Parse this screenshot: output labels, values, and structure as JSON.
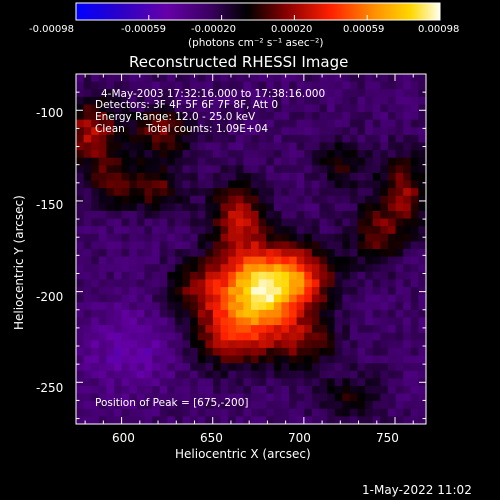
{
  "chart_data": {
    "type": "heatmap",
    "title": "Reconstructed RHESSI Image",
    "xlabel": "Heliocentric X (arcsec)",
    "ylabel": "Heliocentric Y (arcsec)",
    "xlim": [
      575,
      767
    ],
    "ylim": [
      -273,
      -80
    ],
    "xticks": [
      600,
      650,
      700,
      750
    ],
    "yticks": [
      -100,
      -150,
      -200,
      -250
    ],
    "colorbar": {
      "colormap": "RHESSI blue-purple-red-orange-yellow-white",
      "range": [
        -0.00098,
        0.00098
      ],
      "tick_labels": [
        "-0.00098",
        "-0.00059",
        "-0.00020",
        "0.00020",
        "0.00059",
        "0.00098"
      ],
      "units": "(photons cm⁻² s⁻¹ asec⁻²)"
    },
    "annotations": {
      "time_range": "4-May-2003 17:32:16.000 to 17:38:16.000",
      "detectors": "Detectors: 3F 4F 5F 6F 7F 8F, Att 0",
      "energy_range": "Energy Range: 12.0 - 25.0 keV",
      "algorithm": "Clean",
      "total_counts": "Total counts: 1.09E+04",
      "peak_position": "Position of Peak = [675,-200]"
    },
    "peak": [
      675,
      -200
    ],
    "sources": [
      {
        "x": 675,
        "y": -200,
        "amp": 0.00108,
        "sx": 17,
        "sy": 15
      },
      {
        "x": 698,
        "y": -191,
        "amp": 0.0005,
        "sx": 14,
        "sy": 12
      },
      {
        "x": 664,
        "y": -160,
        "amp": 0.0005,
        "sx": 11,
        "sy": 15
      },
      {
        "x": 660,
        "y": -225,
        "amp": 0.00046,
        "sx": 16,
        "sy": 12
      },
      {
        "x": 700,
        "y": -228,
        "amp": 0.00036,
        "sx": 13,
        "sy": 10
      },
      {
        "x": 640,
        "y": -198,
        "amp": 0.0003,
        "sx": 11,
        "sy": 10
      },
      {
        "x": 584,
        "y": -112,
        "amp": 0.0005,
        "sx": 11,
        "sy": 13
      },
      {
        "x": 622,
        "y": -112,
        "amp": 0.0004,
        "sx": 11,
        "sy": 9
      },
      {
        "x": 618,
        "y": -142,
        "amp": 0.00036,
        "sx": 11,
        "sy": 9
      },
      {
        "x": 595,
        "y": -140,
        "amp": 0.0003,
        "sx": 9,
        "sy": 9
      },
      {
        "x": 755,
        "y": -145,
        "amp": 0.00042,
        "sx": 10,
        "sy": 14
      },
      {
        "x": 740,
        "y": -168,
        "amp": 0.00034,
        "sx": 11,
        "sy": 11
      },
      {
        "x": 720,
        "y": -130,
        "amp": 0.00024,
        "sx": 10,
        "sy": 10
      },
      {
        "x": 725,
        "y": -258,
        "amp": 0.00024,
        "sx": 12,
        "sy": 9
      }
    ],
    "base_level": -0.00028,
    "footer_date": "1-May-2022 11:02"
  }
}
